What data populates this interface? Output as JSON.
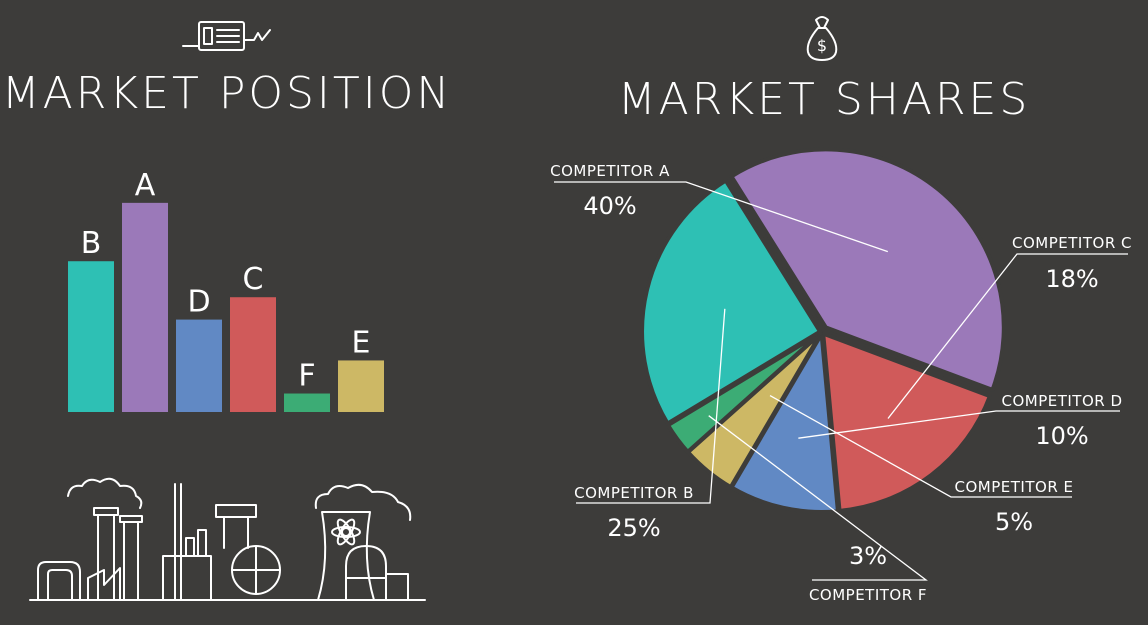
{
  "colors": {
    "background": "#3d3c3a",
    "purple": "#9b79b9",
    "teal": "#2ec0b4",
    "blue": "#6189c4",
    "red": "#d05a5a",
    "green": "#3cac75",
    "gold": "#cdb865",
    "text": "#ffffff"
  },
  "icons": {
    "left_header": "document-plug-icon",
    "right_header": "money-bag-icon",
    "city": "factory-skyline-icon"
  },
  "chart_data": [
    {
      "type": "bar",
      "title": "MARKET POSITION",
      "categories": [
        "B",
        "A",
        "D",
        "C",
        "F",
        "E"
      ],
      "values": [
        155,
        215,
        95,
        118,
        19,
        53
      ],
      "colors": [
        "#2ec0b4",
        "#9b79b9",
        "#6189c4",
        "#d05a5a",
        "#3cac75",
        "#cdb865"
      ],
      "ylim": [
        0,
        220
      ],
      "axes_visible": false,
      "grid": false
    },
    {
      "type": "pie",
      "title": "MARKET SHARES",
      "slices": [
        {
          "name": "COMPETITOR A",
          "value": 40,
          "label": "40%",
          "color": "#9b79b9"
        },
        {
          "name": "COMPETITOR C",
          "value": 18,
          "label": "18%",
          "color": "#d05a5a"
        },
        {
          "name": "COMPETITOR D",
          "value": 10,
          "label": "10%",
          "color": "#6189c4"
        },
        {
          "name": "COMPETITOR E",
          "value": 5,
          "label": "5%",
          "color": "#cdb865"
        },
        {
          "name": "COMPETITOR F",
          "value": 3,
          "label": "3%",
          "color": "#3cac75"
        },
        {
          "name": "COMPETITOR B",
          "value": 25,
          "label": "25%",
          "color": "#2ec0b4"
        }
      ],
      "exploded_slice": "COMPETITOR A",
      "legend": "none"
    }
  ]
}
